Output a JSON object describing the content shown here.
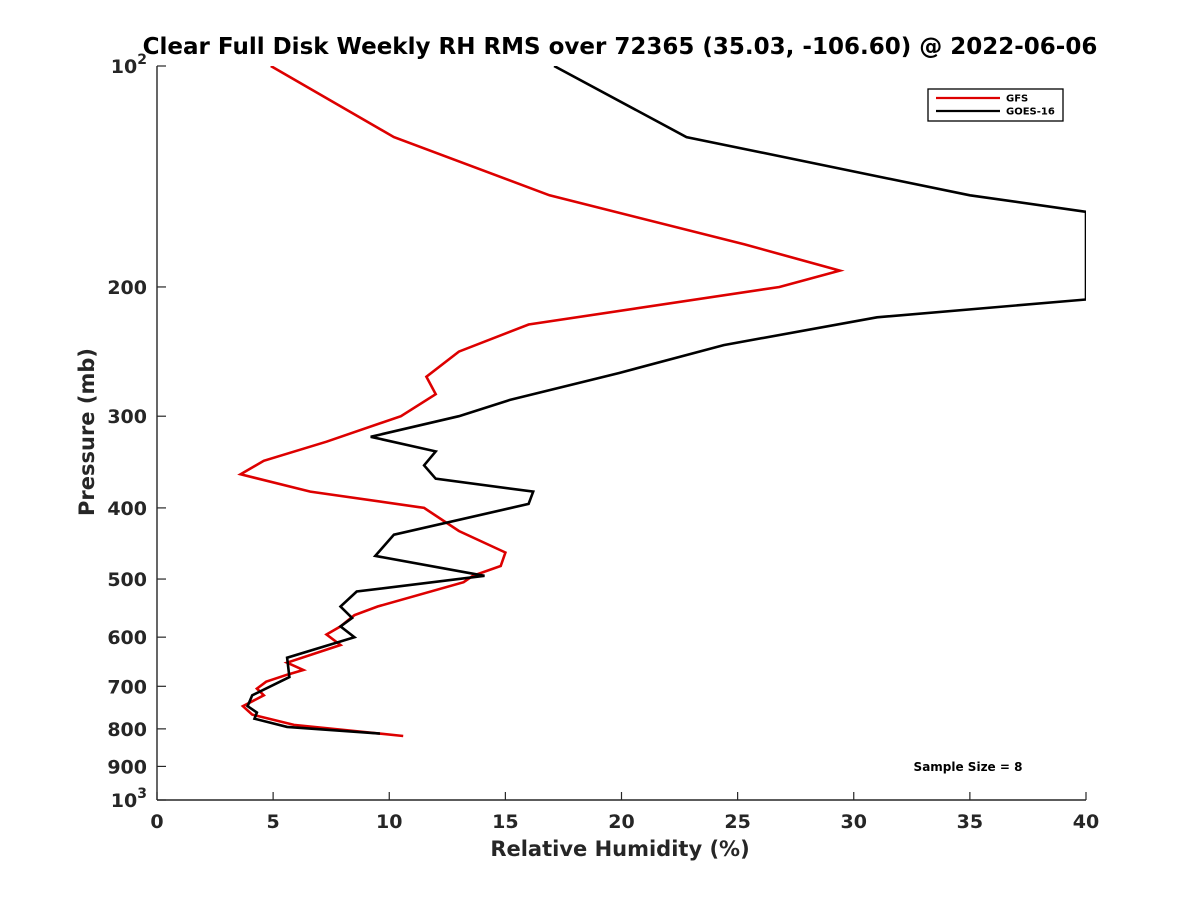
{
  "chart_data": {
    "type": "line",
    "title": "Clear Full Disk Weekly RH RMS over 72365 (35.03, -106.60) @ 2022-06-06",
    "xlabel": "Relative Humidity (%)",
    "ylabel": "Pressure (mb)",
    "xlim": [
      0,
      40
    ],
    "ylim": [
      100,
      1000
    ],
    "y_scale": "log",
    "y_reversed": true,
    "x_ticks": [
      "0",
      "5",
      "10",
      "15",
      "20",
      "25",
      "30",
      "35",
      "40"
    ],
    "y_ticks": [
      {
        "value": 100,
        "base": "10",
        "exp": "2"
      },
      {
        "value": 200,
        "label": "200"
      },
      {
        "value": 300,
        "label": "300"
      },
      {
        "value": 400,
        "label": "400"
      },
      {
        "value": 500,
        "label": "500"
      },
      {
        "value": 600,
        "label": "600"
      },
      {
        "value": 700,
        "label": "700"
      },
      {
        "value": 800,
        "label": "800"
      },
      {
        "value": 900,
        "label": "900"
      },
      {
        "value": 1000,
        "base": "10",
        "exp": "3"
      }
    ],
    "legend_position": "top-right",
    "annotation": "Sample Size = 8",
    "series": [
      {
        "name": "GFS",
        "color": "#dd0000",
        "points": [
          [
            4.9,
            100
          ],
          [
            10.2,
            125
          ],
          [
            16.9,
            150
          ],
          [
            25.3,
            175
          ],
          [
            29.4,
            190
          ],
          [
            26.8,
            200
          ],
          [
            16.0,
            225
          ],
          [
            13.0,
            245
          ],
          [
            11.6,
            265
          ],
          [
            12.0,
            280
          ],
          [
            10.5,
            300
          ],
          [
            7.3,
            325
          ],
          [
            4.6,
            345
          ],
          [
            3.6,
            360
          ],
          [
            6.6,
            380
          ],
          [
            11.5,
            400
          ],
          [
            13.0,
            430
          ],
          [
            15.0,
            460
          ],
          [
            14.8,
            480
          ],
          [
            13.6,
            495
          ],
          [
            13.2,
            505
          ],
          [
            9.5,
            545
          ],
          [
            8.5,
            560
          ],
          [
            7.9,
            580
          ],
          [
            7.3,
            595
          ],
          [
            7.9,
            615
          ],
          [
            5.6,
            650
          ],
          [
            6.3,
            665
          ],
          [
            5.6,
            675
          ],
          [
            4.7,
            690
          ],
          [
            4.3,
            705
          ],
          [
            4.6,
            720
          ],
          [
            3.7,
            745
          ],
          [
            4.1,
            765
          ],
          [
            5.9,
            790
          ],
          [
            10.6,
            818
          ]
        ]
      },
      {
        "name": "GOES-16",
        "color": "#000000",
        "points": [
          [
            17.1,
            100
          ],
          [
            22.8,
            125
          ],
          [
            35.0,
            150
          ],
          [
            40.0,
            158
          ],
          [
            40.0,
            208
          ],
          [
            31.0,
            220
          ],
          [
            24.4,
            240
          ],
          [
            19.9,
            262
          ],
          [
            15.2,
            285
          ],
          [
            13.0,
            300
          ],
          [
            9.2,
            320
          ],
          [
            12.0,
            335
          ],
          [
            11.5,
            350
          ],
          [
            12.0,
            365
          ],
          [
            16.2,
            380
          ],
          [
            16.0,
            395
          ],
          [
            10.2,
            435
          ],
          [
            9.4,
            465
          ],
          [
            14.1,
            495
          ],
          [
            8.6,
            520
          ],
          [
            7.9,
            545
          ],
          [
            8.4,
            565
          ],
          [
            7.9,
            580
          ],
          [
            8.5,
            600
          ],
          [
            5.6,
            640
          ],
          [
            5.7,
            680
          ],
          [
            4.1,
            720
          ],
          [
            3.9,
            745
          ],
          [
            4.3,
            760
          ],
          [
            4.2,
            775
          ],
          [
            5.6,
            795
          ],
          [
            9.6,
            812
          ]
        ]
      }
    ]
  }
}
